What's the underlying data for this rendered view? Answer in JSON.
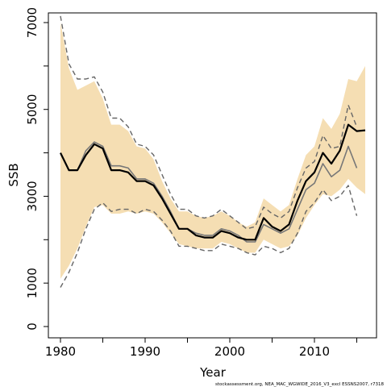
{
  "chart_data": {
    "type": "line",
    "xlabel": "Year",
    "ylabel": "SSB",
    "xlim": [
      1980,
      2016
    ],
    "ylim": [
      0,
      7000
    ],
    "x_ticks": [
      1980,
      1990,
      2000,
      2010
    ],
    "y_ticks": [
      0,
      1000,
      3000,
      5000,
      7000
    ],
    "grid": false,
    "footer": "stockassessment.org, NEA_MAC_WGWIDE_2016_V3_excl ESSNS2007, r7318",
    "colors": {
      "band": "#f5deb3",
      "estimate": "#000000",
      "reference": "#777777",
      "reference_ci": "#666666"
    },
    "series": [
      {
        "role": "confidence-band",
        "x": [
          1980,
          1981,
          1982,
          1983,
          1984,
          1985,
          1986,
          1987,
          1988,
          1989,
          1990,
          1991,
          1992,
          1993,
          1994,
          1995,
          1996,
          1997,
          1998,
          1999,
          2000,
          2001,
          2002,
          2003,
          2004,
          2005,
          2006,
          2007,
          2008,
          2009,
          2010,
          2011,
          2012,
          2013,
          2014,
          2015,
          2016
        ],
        "upper": [
          7000,
          5950,
          5450,
          5550,
          5650,
          5250,
          4650,
          4650,
          4500,
          4150,
          4100,
          3850,
          3350,
          2950,
          2650,
          2650,
          2550,
          2500,
          2550,
          2650,
          2550,
          2400,
          2300,
          2400,
          2950,
          2800,
          2650,
          2800,
          3400,
          3950,
          4150,
          4800,
          4550,
          4900,
          5700,
          5650,
          6000
        ],
        "lower": [
          1100,
          1400,
          1800,
          2300,
          2750,
          2800,
          2600,
          2600,
          2650,
          2600,
          2650,
          2600,
          2400,
          2150,
          1900,
          1850,
          1800,
          1800,
          1800,
          1950,
          1900,
          1800,
          1700,
          1700,
          2000,
          1900,
          1800,
          1850,
          2100,
          2500,
          2800,
          3050,
          3000,
          3150,
          3400,
          3200,
          3050
        ]
      },
      {
        "role": "estimate",
        "x": [
          1980,
          1981,
          1982,
          1983,
          1984,
          1985,
          1986,
          1987,
          1988,
          1989,
          1990,
          1991,
          1992,
          1993,
          1994,
          1995,
          1996,
          1997,
          1998,
          1999,
          2000,
          2001,
          2002,
          2003,
          2004,
          2005,
          2006,
          2007,
          2008,
          2009,
          2010,
          2011,
          2012,
          2013,
          2014,
          2015,
          2016
        ],
        "y": [
          4000,
          3600,
          3600,
          3950,
          4200,
          4100,
          3600,
          3600,
          3550,
          3350,
          3350,
          3250,
          2950,
          2600,
          2250,
          2250,
          2100,
          2050,
          2050,
          2200,
          2150,
          2050,
          2000,
          2000,
          2500,
          2300,
          2200,
          2350,
          2900,
          3350,
          3550,
          4000,
          3750,
          4050,
          4650,
          4500,
          4520
        ]
      },
      {
        "role": "reference",
        "x": [
          1980,
          1981,
          1982,
          1983,
          1984,
          1985,
          1986,
          1987,
          1988,
          1989,
          1990,
          1991,
          1992,
          1993,
          1994,
          1995,
          1996,
          1997,
          1998,
          1999,
          2000,
          2001,
          2002,
          2003,
          2004,
          2005,
          2006,
          2007,
          2008,
          2009,
          2010,
          2011,
          2012,
          2013,
          2014,
          2015
        ],
        "y": [
          4000,
          3600,
          3600,
          4050,
          4250,
          4150,
          3700,
          3700,
          3650,
          3400,
          3400,
          3300,
          3000,
          2650,
          2250,
          2250,
          2150,
          2100,
          2100,
          2250,
          2200,
          2100,
          1950,
          1950,
          2350,
          2250,
          2150,
          2250,
          2700,
          3150,
          3300,
          3750,
          3450,
          3600,
          4150,
          3650
        ]
      },
      {
        "role": "reference-upper",
        "x": [
          1980,
          1981,
          1982,
          1983,
          1984,
          1985,
          1986,
          1987,
          1988,
          1989,
          1990,
          1991,
          1992,
          1993,
          1994,
          1995,
          1996,
          1997,
          1998,
          1999,
          2000,
          2001,
          2002,
          2003,
          2004,
          2005,
          2006,
          2007,
          2008,
          2009,
          2010,
          2011,
          2012,
          2013,
          2014,
          2015
        ],
        "y": [
          7150,
          6050,
          5700,
          5700,
          5750,
          5400,
          4800,
          4800,
          4600,
          4200,
          4150,
          3950,
          3500,
          3050,
          2700,
          2700,
          2550,
          2500,
          2550,
          2700,
          2550,
          2400,
          2250,
          2300,
          2750,
          2600,
          2500,
          2650,
          3200,
          3650,
          3800,
          4400,
          4100,
          4150,
          5100,
          4600
        ]
      },
      {
        "role": "reference-lower",
        "x": [
          1980,
          1981,
          1982,
          1983,
          1984,
          1985,
          1986,
          1987,
          1988,
          1989,
          1990,
          1991,
          1992,
          1993,
          1994,
          1995,
          1996,
          1997,
          1998,
          1999,
          2000,
          2001,
          2002,
          2003,
          2004,
          2005,
          2006,
          2007,
          2008,
          2009,
          2010,
          2011,
          2012,
          2013,
          2014,
          2015
        ],
        "y": [
          900,
          1250,
          1700,
          2250,
          2700,
          2850,
          2650,
          2700,
          2700,
          2600,
          2700,
          2650,
          2450,
          2200,
          1850,
          1850,
          1800,
          1750,
          1750,
          1900,
          1850,
          1800,
          1700,
          1650,
          1850,
          1800,
          1700,
          1800,
          2150,
          2650,
          2850,
          3150,
          2900,
          3000,
          3250,
          2550
        ]
      }
    ]
  }
}
